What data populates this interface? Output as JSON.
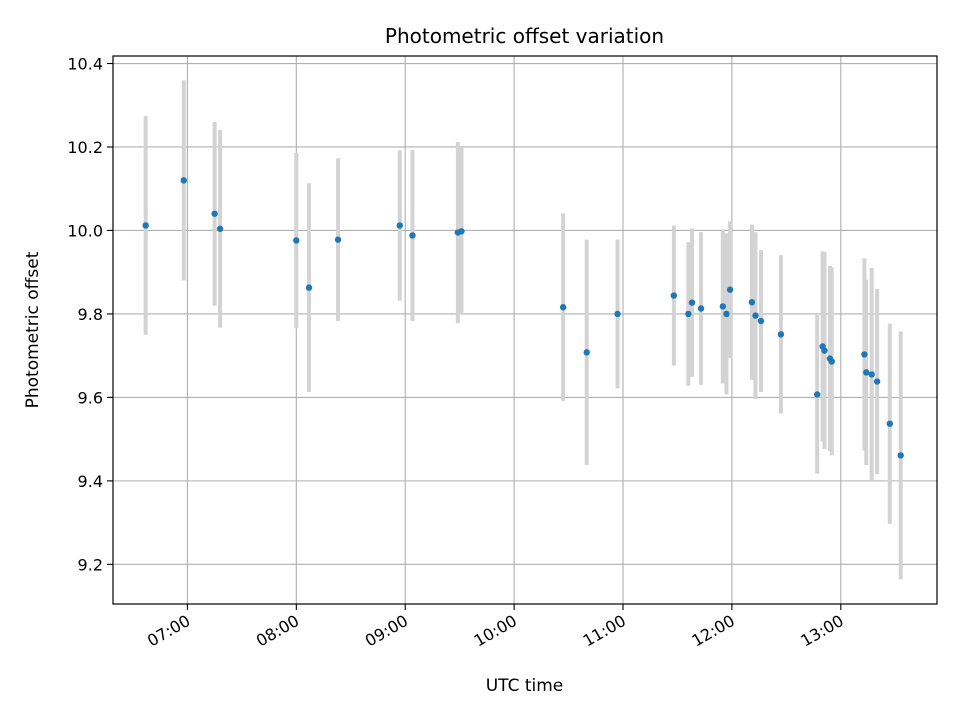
{
  "chart_data": {
    "type": "scatter",
    "title": "Photometric offset variation",
    "xlabel": "UTC time",
    "ylabel": "Photometric offset",
    "x_tick_labels": [
      "07:00",
      "08:00",
      "09:00",
      "10:00",
      "11:00",
      "12:00",
      "13:00"
    ],
    "x_ticks": [
      "07:00",
      "08:00",
      "09:00",
      "10:00",
      "11:00",
      "12:00",
      "13:00"
    ],
    "y_ticks": [
      9.2,
      9.4,
      9.6,
      9.8,
      10.0,
      10.2,
      10.4
    ],
    "y_tick_labels": [
      "9.2",
      "9.4",
      "9.6",
      "9.8",
      "10.0",
      "10.2",
      "10.4"
    ],
    "xlim": [
      "06:19",
      "13:53"
    ],
    "ylim": [
      9.105,
      10.418
    ],
    "grid": true,
    "colors": {
      "point": "#1f77b4",
      "errorbar": "#d3d3d3",
      "grid": "#b0b0b0"
    },
    "points": [
      {
        "t": "06:37",
        "y": 10.012,
        "err": 0.262
      },
      {
        "t": "06:58",
        "y": 10.12,
        "err": 0.24
      },
      {
        "t": "07:15",
        "y": 10.04,
        "err": 0.22
      },
      {
        "t": "07:18",
        "y": 10.004,
        "err": 0.237
      },
      {
        "t": "08:00",
        "y": 9.976,
        "err": 0.21
      },
      {
        "t": "08:07",
        "y": 9.863,
        "err": 0.25
      },
      {
        "t": "08:23",
        "y": 9.978,
        "err": 0.195
      },
      {
        "t": "08:57",
        "y": 10.012,
        "err": 0.18
      },
      {
        "t": "09:04",
        "y": 9.988,
        "err": 0.205
      },
      {
        "t": "09:29",
        "y": 9.995,
        "err": 0.217
      },
      {
        "t": "09:31",
        "y": 9.998,
        "err": 0.2
      },
      {
        "t": "10:27",
        "y": 9.816,
        "err": 0.225
      },
      {
        "t": "10:40",
        "y": 9.708,
        "err": 0.27
      },
      {
        "t": "10:57",
        "y": 9.8,
        "err": 0.178
      },
      {
        "t": "11:28",
        "y": 9.844,
        "err": 0.168
      },
      {
        "t": "11:36",
        "y": 9.8,
        "err": 0.172
      },
      {
        "t": "11:38",
        "y": 9.827,
        "err": 0.178
      },
      {
        "t": "11:43",
        "y": 9.813,
        "err": 0.183
      },
      {
        "t": "11:55",
        "y": 9.818,
        "err": 0.185
      },
      {
        "t": "11:57",
        "y": 9.8,
        "err": 0.193
      },
      {
        "t": "11:59",
        "y": 9.858,
        "err": 0.164
      },
      {
        "t": "12:11",
        "y": 9.828,
        "err": 0.186
      },
      {
        "t": "12:13",
        "y": 9.796,
        "err": 0.2
      },
      {
        "t": "12:16",
        "y": 9.783,
        "err": 0.17
      },
      {
        "t": "12:27",
        "y": 9.751,
        "err": 0.19
      },
      {
        "t": "12:47",
        "y": 9.607,
        "err": 0.19
      },
      {
        "t": "12:50",
        "y": 9.722,
        "err": 0.228
      },
      {
        "t": "12:51",
        "y": 9.712,
        "err": 0.236
      },
      {
        "t": "12:54",
        "y": 9.693,
        "err": 0.222
      },
      {
        "t": "12:55",
        "y": 9.686,
        "err": 0.225
      },
      {
        "t": "13:13",
        "y": 9.703,
        "err": 0.23
      },
      {
        "t": "13:14",
        "y": 9.66,
        "err": 0.222
      },
      {
        "t": "13:17",
        "y": 9.655,
        "err": 0.255
      },
      {
        "t": "13:20",
        "y": 9.638,
        "err": 0.222
      },
      {
        "t": "13:27",
        "y": 9.537,
        "err": 0.24
      },
      {
        "t": "13:33",
        "y": 9.461,
        "err": 0.297
      }
    ]
  }
}
